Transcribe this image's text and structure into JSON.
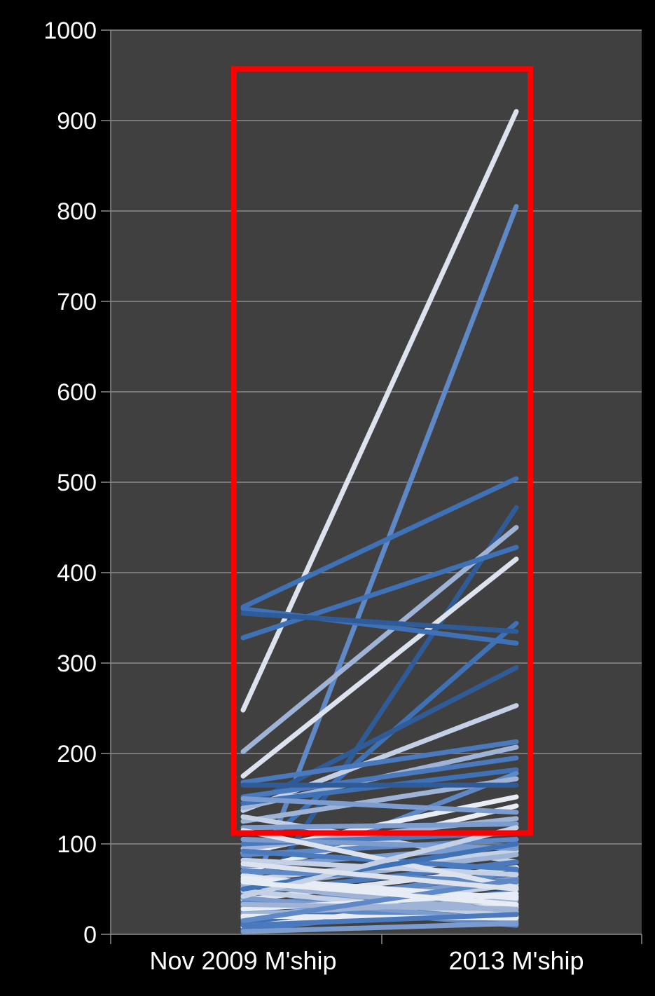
{
  "chart_data": {
    "type": "line",
    "title": "",
    "xlabel": "",
    "ylabel": "",
    "categories": [
      "Nov 2009 M'ship",
      "2013 M'ship"
    ],
    "ylim": [
      0,
      1000
    ],
    "yticks": [
      0,
      100,
      200,
      300,
      400,
      500,
      600,
      700,
      800,
      900,
      1000
    ],
    "grid": true,
    "legend": "none",
    "colors": {
      "page_background": "#000000",
      "plot_background": "#404040",
      "gridline": "#8c8c8c",
      "highlight_box": "#ff0000",
      "series_palette": [
        "#dde3ee",
        "#5f88c6",
        "#3f71b6",
        "#9fb3d6",
        "#2f5c99",
        "#c4d0e6",
        "#4a79bd",
        "#7c9ccf",
        "#e8ecf4"
      ]
    },
    "highlight_range": [
      112,
      957
    ],
    "series": [
      {
        "values": [
          248,
          910
        ],
        "color": "#dde3ee"
      },
      {
        "values": [
          20,
          805
        ],
        "color": "#5f88c6"
      },
      {
        "values": [
          362,
          504
        ],
        "color": "#3f71b6"
      },
      {
        "values": [
          15,
          472
        ],
        "color": "#2f5c99"
      },
      {
        "values": [
          202,
          450
        ],
        "color": "#9fb3d6"
      },
      {
        "values": [
          328,
          428
        ],
        "color": "#3f71b6"
      },
      {
        "values": [
          175,
          415
        ],
        "color": "#dde3ee"
      },
      {
        "values": [
          80,
          344
        ],
        "color": "#3f71b6"
      },
      {
        "values": [
          360,
          322
        ],
        "color": "#3f71b6"
      },
      {
        "values": [
          355,
          335
        ],
        "color": "#2f5c99"
      },
      {
        "values": [
          140,
          295
        ],
        "color": "#2f5c99"
      },
      {
        "values": [
          137,
          253
        ],
        "color": "#c4d0e6"
      },
      {
        "values": [
          168,
          213
        ],
        "color": "#4a79bd"
      },
      {
        "values": [
          140,
          207
        ],
        "color": "#9fb3d6"
      },
      {
        "values": [
          152,
          195
        ],
        "color": "#4a79bd"
      },
      {
        "values": [
          145,
          182
        ],
        "color": "#3f71b6"
      },
      {
        "values": [
          60,
          178
        ],
        "color": "#5f88c6"
      },
      {
        "values": [
          125,
          172
        ],
        "color": "#9fb3d6"
      },
      {
        "values": [
          165,
          165
        ],
        "color": "#2f5c99"
      },
      {
        "values": [
          90,
          152
        ],
        "color": "#e8ecf4"
      },
      {
        "values": [
          70,
          142
        ],
        "color": "#e8ecf4"
      },
      {
        "values": [
          150,
          135
        ],
        "color": "#7c9ccf"
      },
      {
        "values": [
          130,
          80
        ],
        "color": "#c4d0e6"
      },
      {
        "values": [
          95,
          128
        ],
        "color": "#9fb3d6"
      },
      {
        "values": [
          118,
          122
        ],
        "color": "#7c9ccf"
      },
      {
        "values": [
          100,
          112
        ],
        "color": "#4a79bd"
      },
      {
        "values": [
          88,
          105
        ],
        "color": "#5f88c6"
      },
      {
        "values": [
          75,
          98
        ],
        "color": "#7c9ccf"
      },
      {
        "values": [
          60,
          92
        ],
        "color": "#c4d0e6"
      },
      {
        "values": [
          52,
          88
        ],
        "color": "#9fb3d6"
      },
      {
        "values": [
          45,
          80
        ],
        "color": "#4a79bd"
      },
      {
        "values": [
          38,
          74
        ],
        "color": "#dde3ee"
      },
      {
        "values": [
          30,
          68
        ],
        "color": "#5f88c6"
      },
      {
        "values": [
          25,
          62
        ],
        "color": "#7c9ccf"
      },
      {
        "values": [
          18,
          55
        ],
        "color": "#c4d0e6"
      },
      {
        "values": [
          12,
          48
        ],
        "color": "#3f71b6"
      },
      {
        "values": [
          8,
          42
        ],
        "color": "#e8ecf4"
      },
      {
        "values": [
          5,
          35
        ],
        "color": "#4a79bd"
      },
      {
        "values": [
          65,
          30
        ],
        "color": "#dde3ee"
      },
      {
        "values": [
          55,
          25
        ],
        "color": "#9fb3d6"
      },
      {
        "values": [
          48,
          20
        ],
        "color": "#c4d0e6"
      },
      {
        "values": [
          40,
          15
        ],
        "color": "#7c9ccf"
      },
      {
        "values": [
          35,
          10
        ],
        "color": "#5f88c6"
      },
      {
        "values": [
          28,
          45
        ],
        "color": "#e8ecf4"
      },
      {
        "values": [
          22,
          38
        ],
        "color": "#9fb3d6"
      },
      {
        "values": [
          70,
          58
        ],
        "color": "#5f88c6"
      },
      {
        "values": [
          82,
          66
        ],
        "color": "#c4d0e6"
      },
      {
        "values": [
          92,
          72
        ],
        "color": "#4a79bd"
      },
      {
        "values": [
          105,
          95
        ],
        "color": "#7c9ccf"
      },
      {
        "values": [
          115,
          52
        ],
        "color": "#dde3ee"
      },
      {
        "values": [
          62,
          40
        ],
        "color": "#e8ecf4"
      },
      {
        "values": [
          50,
          100
        ],
        "color": "#3f71b6"
      },
      {
        "values": [
          42,
          118
        ],
        "color": "#c4d0e6"
      },
      {
        "values": [
          33,
          28
        ],
        "color": "#9fb3d6"
      },
      {
        "values": [
          20,
          18
        ],
        "color": "#e8ecf4"
      },
      {
        "values": [
          15,
          60
        ],
        "color": "#5f88c6"
      },
      {
        "values": [
          10,
          22
        ],
        "color": "#4a79bd"
      },
      {
        "values": [
          3,
          12
        ],
        "color": "#7c9ccf"
      },
      {
        "values": [
          58,
          33
        ],
        "color": "#e8ecf4"
      },
      {
        "values": [
          78,
          50
        ],
        "color": "#dde3ee"
      }
    ]
  }
}
